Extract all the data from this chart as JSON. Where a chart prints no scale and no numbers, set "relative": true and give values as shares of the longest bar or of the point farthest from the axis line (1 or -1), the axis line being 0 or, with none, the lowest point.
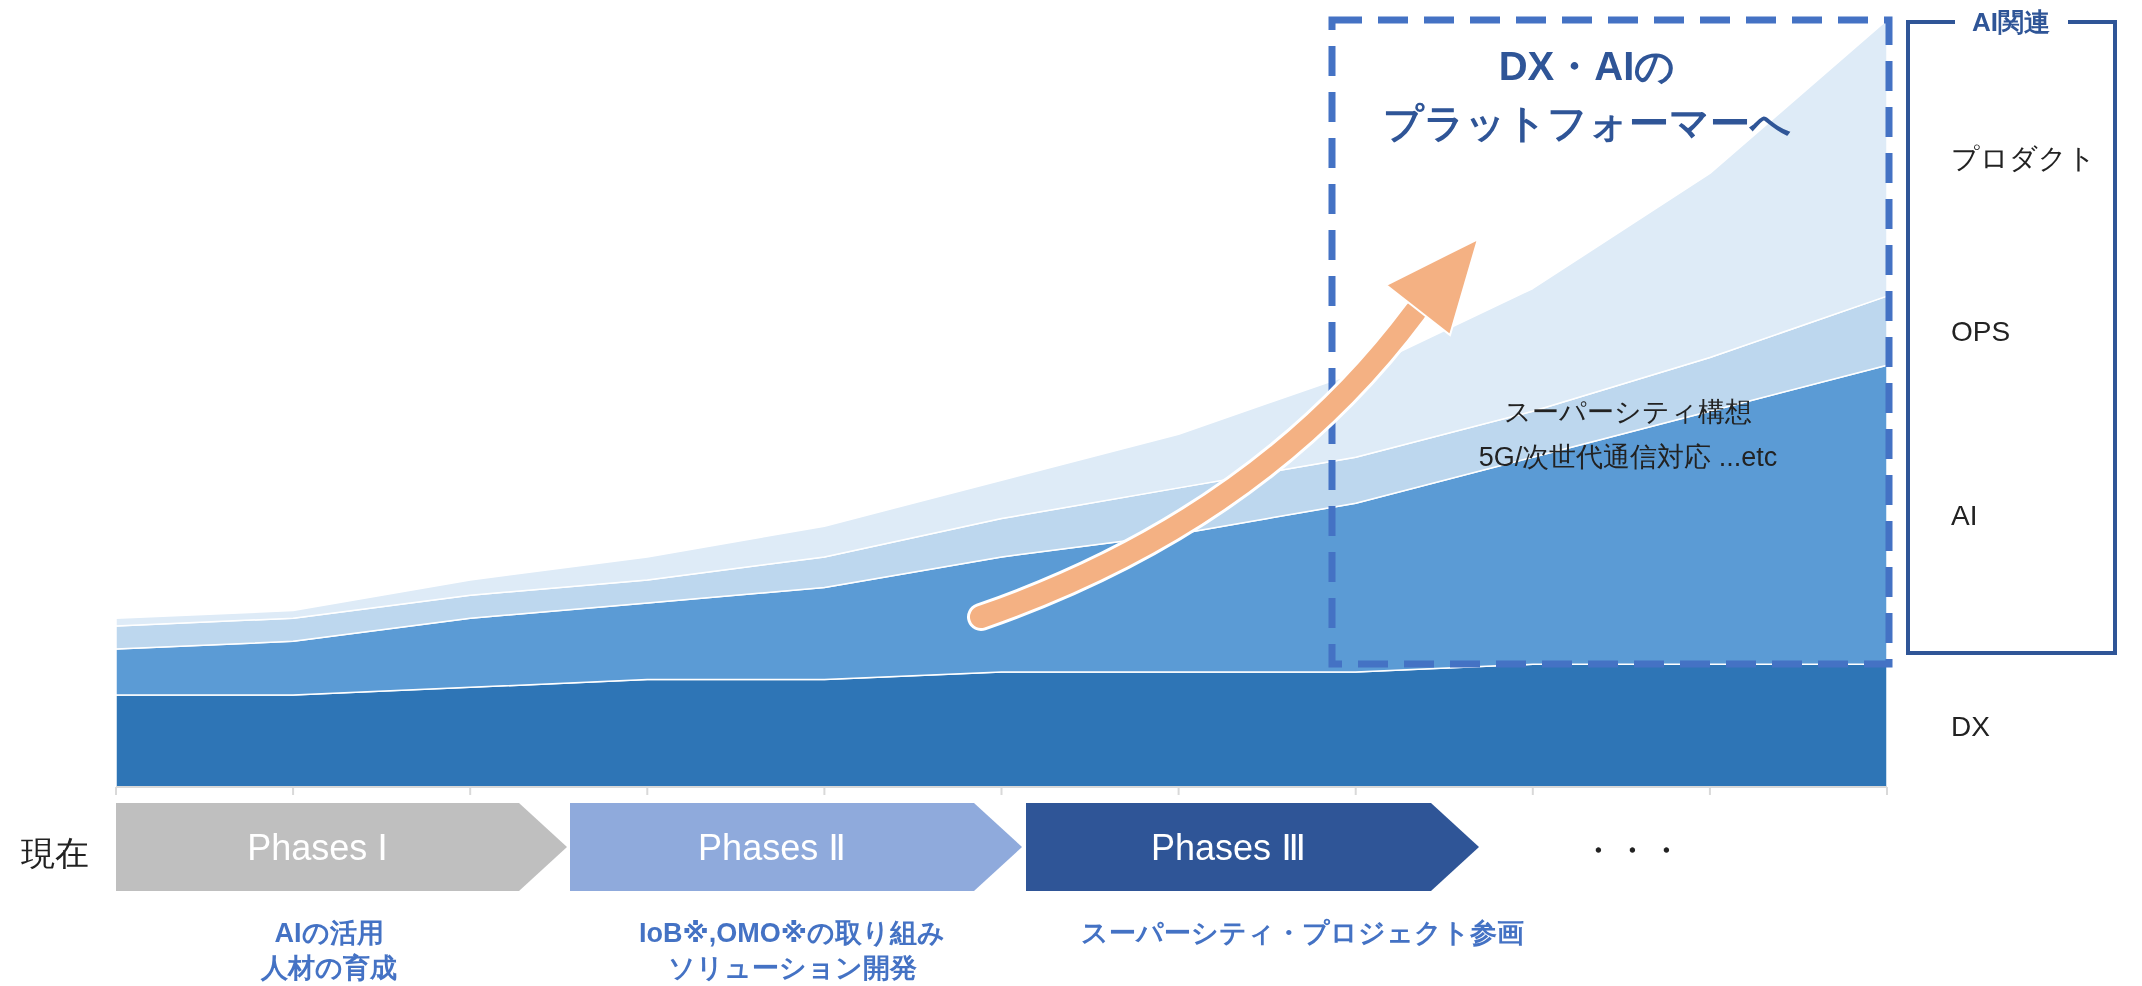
{
  "chart_data": {
    "type": "area",
    "stacked": true,
    "relative": true,
    "legend": "right",
    "legend_title": "AI関連",
    "categories": [
      null,
      null,
      null,
      null,
      null,
      null,
      null,
      null,
      null,
      null,
      null
    ],
    "series": [
      {
        "name": "DX",
        "color": "#2e75b6",
        "values": [
          0.12,
          0.12,
          0.13,
          0.14,
          0.14,
          0.15,
          0.15,
          0.15,
          0.16,
          0.16,
          0.16
        ]
      },
      {
        "name": "AI",
        "color": "#5b9bd5",
        "values": [
          0.06,
          0.07,
          0.09,
          0.1,
          0.12,
          0.15,
          0.18,
          0.22,
          0.27,
          0.33,
          0.39
        ]
      },
      {
        "name": "OPS",
        "color": "#bdd7ee",
        "values": [
          0.03,
          0.03,
          0.03,
          0.03,
          0.04,
          0.05,
          0.06,
          0.06,
          0.06,
          0.07,
          0.09
        ]
      },
      {
        "name": "プロダクト",
        "color": "#deebf7",
        "values": [
          0.01,
          0.01,
          0.02,
          0.03,
          0.04,
          0.05,
          0.07,
          0.11,
          0.16,
          0.24,
          0.36
        ]
      }
    ],
    "annotations": [
      "DX・AIの",
      "プラットフォーマーへ",
      "スーパーシティ構想",
      "5G/次世代通信対応 ...etc",
      "現在",
      "Phases Ⅰ",
      "Phases Ⅱ",
      "Phases Ⅲ",
      "・・・",
      "AIの活用",
      "人材の育成",
      "IoB※,OMO※の取り組み",
      "ソリューション開発",
      "スーパーシティ・プロジェクト参画"
    ]
  }
}
